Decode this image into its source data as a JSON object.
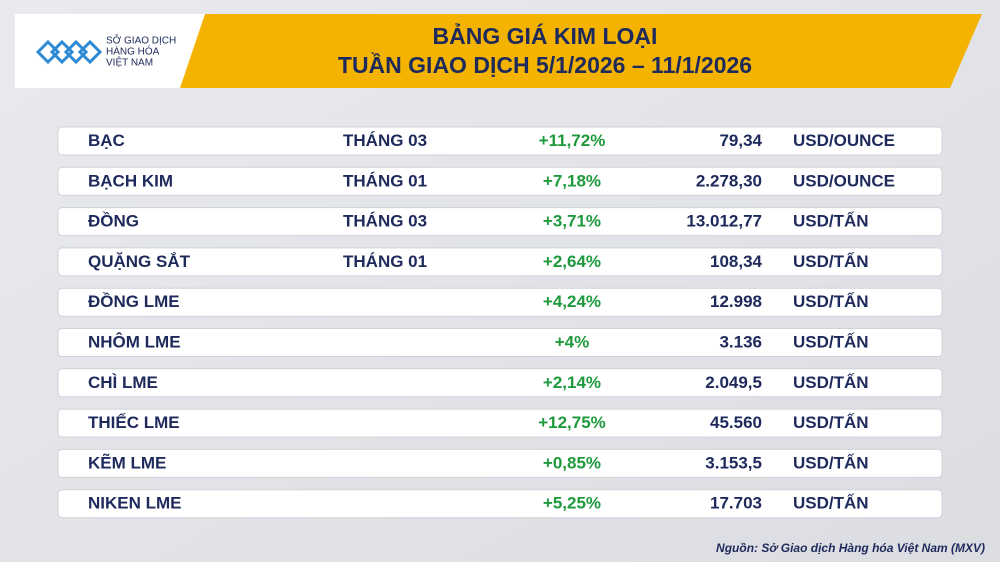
{
  "logo": {
    "lines": [
      "SỞ GIAO DỊCH",
      "HÀNG HÓA",
      "VIỆT NAM"
    ]
  },
  "header": {
    "title": [
      "BẢNG GIÁ KIM LOẠI",
      "TUẦN GIAO DỊCH 5/1/2026 – 11/1/2026"
    ]
  },
  "table": {
    "rows": [
      {
        "name": "BẠC",
        "month": "THÁNG 03",
        "change": "+11,72%",
        "price": "79,34",
        "unit": "USD/OUNCE"
      },
      {
        "name": "BẠCH KIM",
        "month": "THÁNG 01",
        "change": "+7,18%",
        "price": "2.278,30",
        "unit": "USD/OUNCE"
      },
      {
        "name": "ĐỒNG",
        "month": "THÁNG 03",
        "change": "+3,71%",
        "price": "13.012,77",
        "unit": "USD/TẤN"
      },
      {
        "name": "QUẶNG SẮT",
        "month": "THÁNG 01",
        "change": "+2,64%",
        "price": "108,34",
        "unit": "USD/TẤN"
      },
      {
        "name": "ĐỒNG LME",
        "change": "+4,24%",
        "price": "12.998",
        "unit": "USD/TẤN"
      },
      {
        "name": "NHÔM LME",
        "change": "+4%",
        "price": "3.136",
        "unit": "USD/TẤN"
      },
      {
        "name": "CHÌ LME",
        "change": "+2,14%",
        "price": "2.049,5",
        "unit": "USD/TẤN"
      },
      {
        "name": "THIẾC LME",
        "change": "+12,75%",
        "price": "45.560",
        "unit": "USD/TẤN"
      },
      {
        "name": "KẼM LME",
        "change": "+0,85%",
        "price": "3.153,5",
        "unit": "USD/TẤN"
      },
      {
        "name": "NIKEN LME",
        "change": "+5,25%",
        "price": "17.703",
        "unit": "USD/TẤN"
      }
    ]
  },
  "source": "Nguồn: Sở Giao dịch Hàng hóa Việt Nam (MXV)"
}
